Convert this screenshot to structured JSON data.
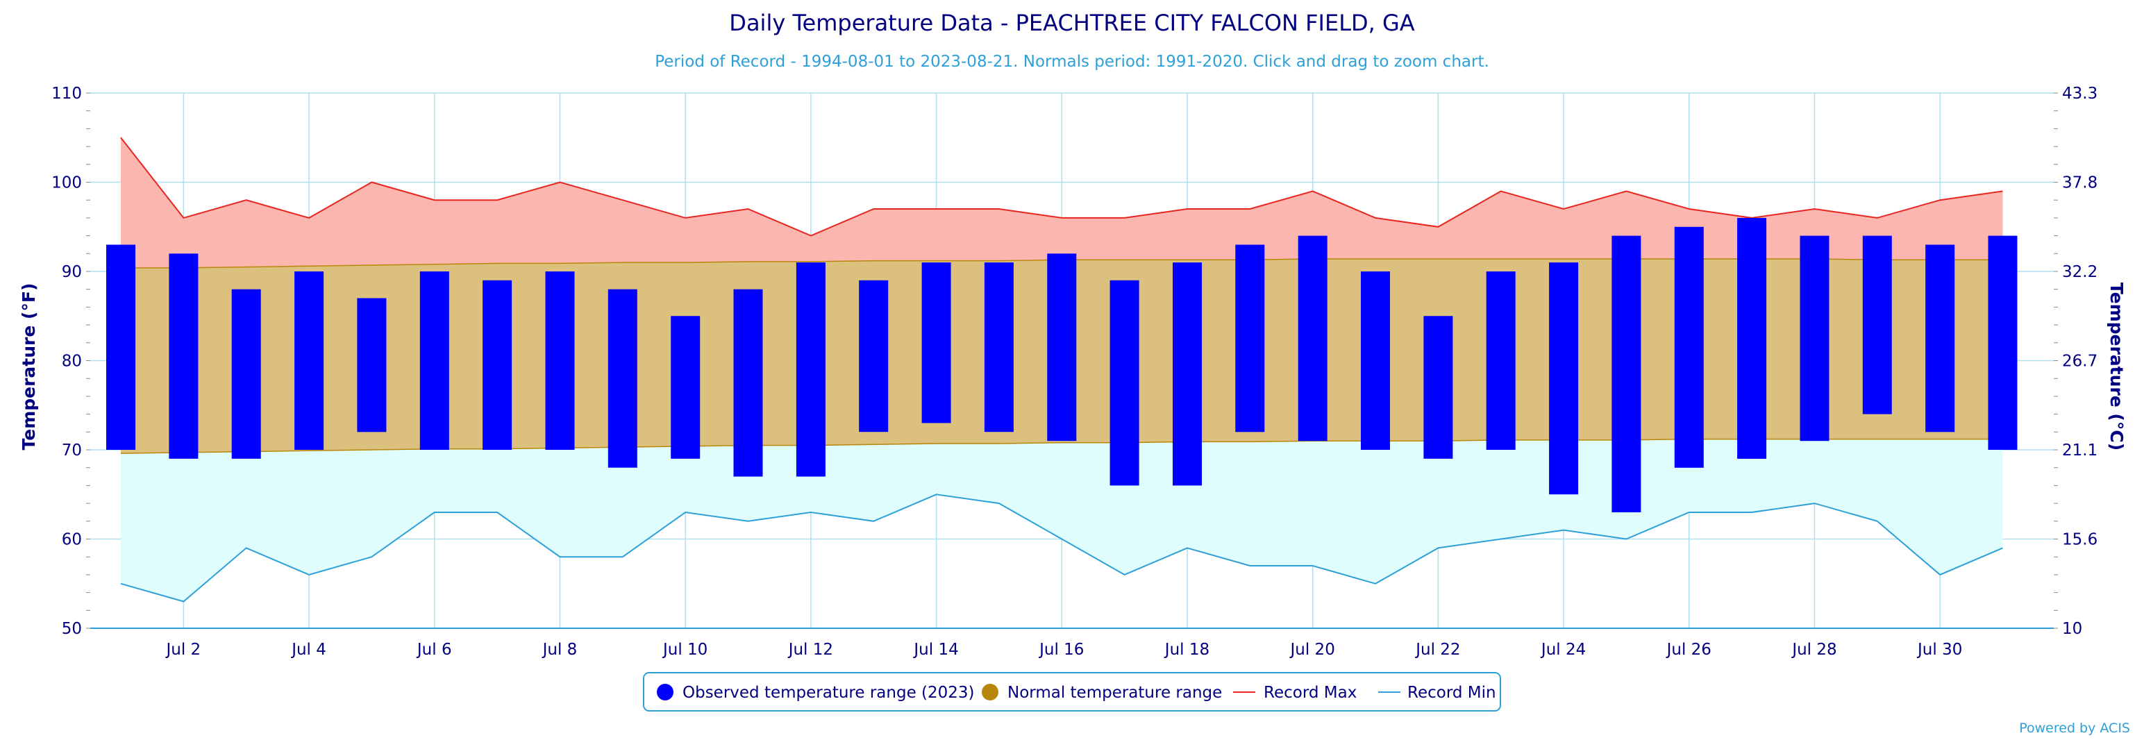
{
  "chart_data": {
    "type": "bar",
    "title": "Daily Temperature Data - PEACHTREE CITY FALCON FIELD, GA",
    "subtitle": "Period of Record - 1994-08-01 to 2023-08-21. Normals period: 1991-2020. Click and drag to zoom chart.",
    "ylabel_left": "Temperature (°F)",
    "ylabel_right": "Temperature (°C)",
    "ylim": [
      50,
      110
    ],
    "y_ticks": [
      50,
      60,
      70,
      80,
      90,
      100,
      110
    ],
    "y_right_ticks": [
      "10",
      "15.6",
      "21.1",
      "26.7",
      "32.2",
      "37.8",
      "43.3"
    ],
    "x_tick_labels": [
      {
        "day": 2,
        "label": "Jul 2"
      },
      {
        "day": 4,
        "label": "Jul 4"
      },
      {
        "day": 6,
        "label": "Jul 6"
      },
      {
        "day": 8,
        "label": "Jul 8"
      },
      {
        "day": 10,
        "label": "Jul 10"
      },
      {
        "day": 12,
        "label": "Jul 12"
      },
      {
        "day": 14,
        "label": "Jul 14"
      },
      {
        "day": 16,
        "label": "Jul 16"
      },
      {
        "day": 18,
        "label": "Jul 18"
      },
      {
        "day": 20,
        "label": "Jul 20"
      },
      {
        "day": 22,
        "label": "Jul 22"
      },
      {
        "day": 24,
        "label": "Jul 24"
      },
      {
        "day": 26,
        "label": "Jul 26"
      },
      {
        "day": 28,
        "label": "Jul 28"
      },
      {
        "day": 30,
        "label": "Jul 30"
      }
    ],
    "grid": true,
    "legend_position": "bottom-center",
    "days": [
      1,
      2,
      3,
      4,
      5,
      6,
      7,
      8,
      9,
      10,
      11,
      12,
      13,
      14,
      15,
      16,
      17,
      18,
      19,
      20,
      21,
      22,
      23,
      24,
      25,
      26,
      27,
      28,
      29,
      30,
      31
    ],
    "series": [
      {
        "name": "Observed temperature range (2023)",
        "color": "#0000ff",
        "high": [
          93,
          92,
          88,
          90,
          87,
          90,
          89,
          90,
          88,
          85,
          88,
          91,
          89,
          91,
          91,
          92,
          89,
          91,
          93,
          94,
          90,
          85,
          90,
          91,
          94,
          95,
          96,
          94,
          94,
          93,
          94
        ],
        "low": [
          70,
          69,
          69,
          70,
          72,
          70,
          70,
          70,
          68,
          69,
          67,
          67,
          72,
          73,
          72,
          71,
          66,
          66,
          72,
          71,
          70,
          69,
          70,
          65,
          63,
          68,
          69,
          71,
          74,
          72,
          70
        ]
      },
      {
        "name": "Normal temperature range",
        "color": "#b8860b",
        "fill": "#dcc07e",
        "high": [
          90.4,
          90.4,
          90.5,
          90.6,
          90.7,
          90.8,
          90.9,
          90.9,
          91.0,
          91.0,
          91.1,
          91.1,
          91.2,
          91.2,
          91.2,
          91.3,
          91.3,
          91.3,
          91.3,
          91.4,
          91.4,
          91.4,
          91.4,
          91.4,
          91.4,
          91.4,
          91.4,
          91.4,
          91.3,
          91.3,
          91.3
        ],
        "low": [
          69.6,
          69.7,
          69.8,
          69.9,
          70.0,
          70.1,
          70.1,
          70.2,
          70.3,
          70.4,
          70.5,
          70.5,
          70.6,
          70.7,
          70.7,
          70.8,
          70.8,
          70.9,
          70.9,
          71.0,
          71.0,
          71.0,
          71.1,
          71.1,
          71.1,
          71.2,
          71.2,
          71.2,
          71.2,
          71.2,
          71.2
        ]
      },
      {
        "name": "Record Max",
        "color": "#e8251f",
        "fill": "#fbb6b0",
        "values": [
          105,
          96,
          98,
          96,
          100,
          98,
          98,
          100,
          98,
          96,
          97,
          94,
          97,
          97,
          97,
          96,
          96,
          97,
          97,
          99,
          96,
          95,
          99,
          97,
          99,
          97,
          96,
          97,
          96,
          98,
          99
        ]
      },
      {
        "name": "Record Min",
        "color": "#2ea0d8",
        "fill": "#e0fdfd",
        "values": [
          55,
          53,
          59,
          56,
          58,
          63,
          63,
          58,
          58,
          63,
          62,
          63,
          62,
          65,
          64,
          60,
          56,
          59,
          57,
          57,
          55,
          59,
          60,
          61,
          60,
          63,
          63,
          64,
          62,
          56,
          59
        ]
      }
    ]
  },
  "legend": {
    "items": [
      {
        "label": "Observed temperature range (2023)",
        "marker": "circle",
        "color": "#0000ff"
      },
      {
        "label": "Normal temperature range",
        "marker": "circle",
        "color": "#b8860b"
      },
      {
        "label": "Record Max",
        "marker": "line",
        "color": "#e8251f"
      },
      {
        "label": "Record Min",
        "marker": "line",
        "color": "#2ea0d8"
      }
    ]
  },
  "credit": "Powered by ACIS"
}
